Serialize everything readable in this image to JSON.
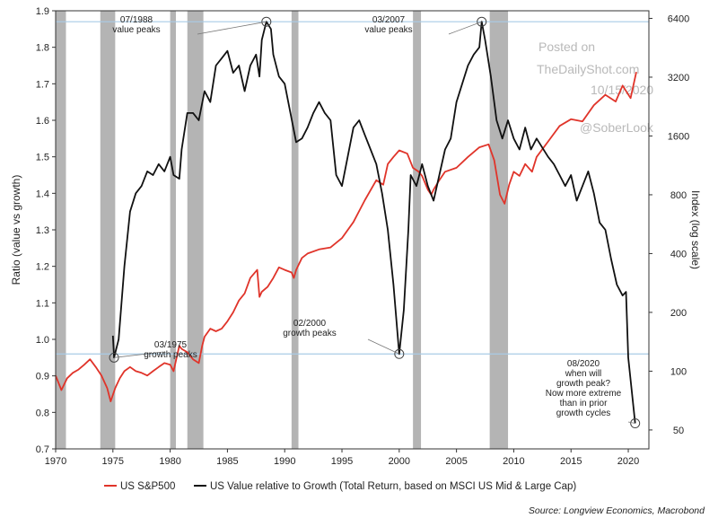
{
  "chart_data": {
    "type": "line",
    "ylabel_left": "Ratio (value vs growth)",
    "ylabel_right": "Index (log scale)",
    "x_ticks": [
      1970,
      1975,
      1980,
      1985,
      1990,
      1995,
      2000,
      2005,
      2010,
      2015,
      2020
    ],
    "xlim": [
      1970,
      2021.8
    ],
    "ylim_left": [
      0.7,
      1.9
    ],
    "y_ticks_left": [
      "0.7",
      "0.8",
      "0.9",
      "1.0",
      "1.1",
      "1.2",
      "1.3",
      "1.4",
      "1.5",
      "1.6",
      "1.7",
      "1.8",
      "1.9"
    ],
    "ylim_right": [
      40,
      7000
    ],
    "y_scale_right": "log",
    "y_ticks_right": [
      50,
      100,
      200,
      400,
      800,
      1600,
      3200,
      6400
    ],
    "grid": false,
    "legend_position": "bottom",
    "recession_bands": [
      [
        1970.0,
        1970.9
      ],
      [
        1973.9,
        1975.2
      ],
      [
        1980.0,
        1980.5
      ],
      [
        1981.5,
        1982.9
      ],
      [
        1990.6,
        1991.2
      ],
      [
        2001.2,
        2001.9
      ],
      [
        2007.9,
        2009.5
      ]
    ],
    "reference_lines_left": [
      1.87,
      0.96
    ],
    "series": [
      {
        "name": "US S&P500",
        "axis": "right",
        "color": "#e0342a",
        "points": [
          [
            1970.0,
            95
          ],
          [
            1970.5,
            80
          ],
          [
            1971.0,
            92
          ],
          [
            1971.5,
            98
          ],
          [
            1972.0,
            102
          ],
          [
            1972.5,
            108
          ],
          [
            1973.0,
            115
          ],
          [
            1973.5,
            105
          ],
          [
            1974.0,
            95
          ],
          [
            1974.5,
            82
          ],
          [
            1974.8,
            70
          ],
          [
            1975.2,
            82
          ],
          [
            1975.6,
            92
          ],
          [
            1976.0,
            100
          ],
          [
            1976.5,
            105
          ],
          [
            1977.0,
            100
          ],
          [
            1977.5,
            98
          ],
          [
            1978.0,
            95
          ],
          [
            1978.5,
            100
          ],
          [
            1979.0,
            105
          ],
          [
            1979.5,
            110
          ],
          [
            1980.0,
            108
          ],
          [
            1980.3,
            100
          ],
          [
            1980.8,
            135
          ],
          [
            1981.0,
            130
          ],
          [
            1981.5,
            125
          ],
          [
            1982.0,
            115
          ],
          [
            1982.5,
            110
          ],
          [
            1982.8,
            135
          ],
          [
            1983.0,
            150
          ],
          [
            1983.5,
            165
          ],
          [
            1984.0,
            160
          ],
          [
            1984.5,
            165
          ],
          [
            1985.0,
            180
          ],
          [
            1985.5,
            200
          ],
          [
            1986.0,
            230
          ],
          [
            1986.5,
            250
          ],
          [
            1987.0,
            300
          ],
          [
            1987.6,
            330
          ],
          [
            1987.8,
            240
          ],
          [
            1988.0,
            255
          ],
          [
            1988.5,
            270
          ],
          [
            1989.0,
            300
          ],
          [
            1989.5,
            340
          ],
          [
            1990.0,
            330
          ],
          [
            1990.6,
            320
          ],
          [
            1990.8,
            300
          ],
          [
            1991.0,
            330
          ],
          [
            1991.5,
            380
          ],
          [
            1992.0,
            400
          ],
          [
            1993.0,
            420
          ],
          [
            1994.0,
            430
          ],
          [
            1995.0,
            480
          ],
          [
            1996.0,
            580
          ],
          [
            1997.0,
            750
          ],
          [
            1998.0,
            950
          ],
          [
            1998.6,
            900
          ],
          [
            1999.0,
            1150
          ],
          [
            1999.5,
            1250
          ],
          [
            2000.0,
            1350
          ],
          [
            2000.7,
            1300
          ],
          [
            2001.2,
            1100
          ],
          [
            2001.7,
            1050
          ],
          [
            2002.0,
            1000
          ],
          [
            2002.5,
            850
          ],
          [
            2002.8,
            800
          ],
          [
            2003.0,
            850
          ],
          [
            2003.5,
            950
          ],
          [
            2004.0,
            1050
          ],
          [
            2005.0,
            1100
          ],
          [
            2006.0,
            1250
          ],
          [
            2007.0,
            1400
          ],
          [
            2007.8,
            1450
          ],
          [
            2008.3,
            1200
          ],
          [
            2008.8,
            800
          ],
          [
            2009.2,
            720
          ],
          [
            2009.6,
            900
          ],
          [
            2010.0,
            1050
          ],
          [
            2010.5,
            1000
          ],
          [
            2011.0,
            1150
          ],
          [
            2011.6,
            1050
          ],
          [
            2012.0,
            1250
          ],
          [
            2013.0,
            1500
          ],
          [
            2014.0,
            1800
          ],
          [
            2015.0,
            1950
          ],
          [
            2016.0,
            1900
          ],
          [
            2017.0,
            2300
          ],
          [
            2018.0,
            2600
          ],
          [
            2018.9,
            2400
          ],
          [
            2019.5,
            2900
          ],
          [
            2020.2,
            2500
          ],
          [
            2020.7,
            3400
          ]
        ]
      },
      {
        "name": "US Value relative to Growth (Total Return, based on MSCI US Mid & Large Cap)",
        "axis": "left",
        "color": "#111111",
        "points": [
          [
            1975.0,
            1.01
          ],
          [
            1975.1,
            0.95
          ],
          [
            1975.5,
            1.0
          ],
          [
            1976.0,
            1.2
          ],
          [
            1976.5,
            1.35
          ],
          [
            1977.0,
            1.4
          ],
          [
            1977.5,
            1.42
          ],
          [
            1978.0,
            1.46
          ],
          [
            1978.5,
            1.45
          ],
          [
            1979.0,
            1.48
          ],
          [
            1979.5,
            1.46
          ],
          [
            1980.0,
            1.5
          ],
          [
            1980.3,
            1.45
          ],
          [
            1980.8,
            1.44
          ],
          [
            1981.0,
            1.52
          ],
          [
            1981.5,
            1.62
          ],
          [
            1982.0,
            1.62
          ],
          [
            1982.5,
            1.6
          ],
          [
            1983.0,
            1.68
          ],
          [
            1983.5,
            1.65
          ],
          [
            1984.0,
            1.75
          ],
          [
            1984.5,
            1.77
          ],
          [
            1985.0,
            1.79
          ],
          [
            1985.5,
            1.73
          ],
          [
            1986.0,
            1.75
          ],
          [
            1986.5,
            1.68
          ],
          [
            1987.0,
            1.75
          ],
          [
            1987.5,
            1.78
          ],
          [
            1987.8,
            1.72
          ],
          [
            1988.0,
            1.82
          ],
          [
            1988.4,
            1.87
          ],
          [
            1988.8,
            1.85
          ],
          [
            1989.0,
            1.78
          ],
          [
            1989.5,
            1.72
          ],
          [
            1990.0,
            1.7
          ],
          [
            1990.5,
            1.62
          ],
          [
            1991.0,
            1.54
          ],
          [
            1991.5,
            1.55
          ],
          [
            1992.0,
            1.58
          ],
          [
            1992.5,
            1.62
          ],
          [
            1993.0,
            1.65
          ],
          [
            1993.5,
            1.62
          ],
          [
            1994.0,
            1.6
          ],
          [
            1994.5,
            1.45
          ],
          [
            1995.0,
            1.42
          ],
          [
            1995.5,
            1.5
          ],
          [
            1996.0,
            1.58
          ],
          [
            1996.5,
            1.6
          ],
          [
            1997.0,
            1.56
          ],
          [
            1997.5,
            1.52
          ],
          [
            1998.0,
            1.48
          ],
          [
            1998.5,
            1.4
          ],
          [
            1999.0,
            1.3
          ],
          [
            1999.5,
            1.15
          ],
          [
            2000.0,
            0.96
          ],
          [
            2000.4,
            1.08
          ],
          [
            2000.8,
            1.3
          ],
          [
            2001.0,
            1.45
          ],
          [
            2001.5,
            1.42
          ],
          [
            2002.0,
            1.48
          ],
          [
            2002.5,
            1.42
          ],
          [
            2003.0,
            1.38
          ],
          [
            2003.5,
            1.45
          ],
          [
            2004.0,
            1.52
          ],
          [
            2004.5,
            1.55
          ],
          [
            2005.0,
            1.65
          ],
          [
            2005.5,
            1.7
          ],
          [
            2006.0,
            1.75
          ],
          [
            2006.5,
            1.78
          ],
          [
            2007.0,
            1.8
          ],
          [
            2007.2,
            1.87
          ],
          [
            2007.5,
            1.82
          ],
          [
            2008.0,
            1.72
          ],
          [
            2008.5,
            1.6
          ],
          [
            2009.0,
            1.55
          ],
          [
            2009.5,
            1.6
          ],
          [
            2010.0,
            1.55
          ],
          [
            2010.5,
            1.52
          ],
          [
            2011.0,
            1.58
          ],
          [
            2011.5,
            1.52
          ],
          [
            2012.0,
            1.55
          ],
          [
            2013.0,
            1.5
          ],
          [
            2013.5,
            1.48
          ],
          [
            2014.0,
            1.45
          ],
          [
            2014.5,
            1.42
          ],
          [
            2015.0,
            1.45
          ],
          [
            2015.5,
            1.38
          ],
          [
            2016.0,
            1.42
          ],
          [
            2016.5,
            1.46
          ],
          [
            2017.0,
            1.4
          ],
          [
            2017.5,
            1.32
          ],
          [
            2018.0,
            1.3
          ],
          [
            2018.5,
            1.22
          ],
          [
            2019.0,
            1.15
          ],
          [
            2019.5,
            1.12
          ],
          [
            2019.8,
            1.13
          ],
          [
            2020.0,
            0.95
          ],
          [
            2020.6,
            0.77
          ]
        ]
      }
    ],
    "annotations": [
      {
        "lines": [
          "07/1988",
          "value peaks"
        ],
        "x": 1988.4,
        "y": 1.87
      },
      {
        "lines": [
          "03/2007",
          "value peaks"
        ],
        "x": 2007.2,
        "y": 1.87
      },
      {
        "lines": [
          "03/1975",
          "growth peaks"
        ],
        "x": 1975.1,
        "y": 0.95
      },
      {
        "lines": [
          "02/2000",
          "growth peaks"
        ],
        "x": 2000.0,
        "y": 0.96
      },
      {
        "lines": [
          "08/2020",
          "when will",
          "growth peak?",
          "Now more extreme",
          "than in prior",
          "growth cycles"
        ],
        "x": 2020.6,
        "y": 0.77
      }
    ]
  },
  "watermark": [
    "Posted on",
    "TheDailyShot.com",
    "10/15/2020",
    "@SoberLook"
  ],
  "source": "Source: Longview Economics, Macrobond"
}
